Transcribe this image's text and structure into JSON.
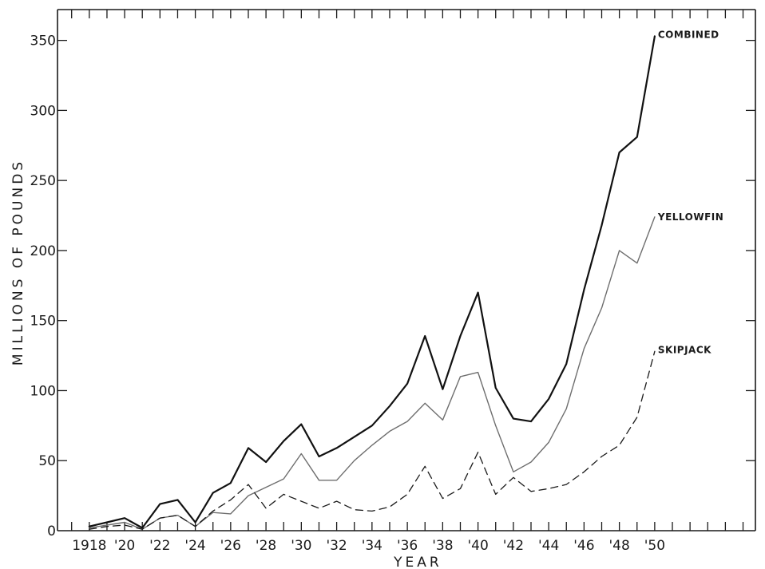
{
  "chart_data": {
    "type": "line",
    "title": "",
    "xlabel": "YEAR",
    "ylabel": "MILLIONS OF POUNDS",
    "x": [
      1918,
      1919,
      1920,
      1921,
      1922,
      1923,
      1924,
      1925,
      1926,
      1927,
      1928,
      1929,
      1930,
      1931,
      1932,
      1933,
      1934,
      1935,
      1936,
      1937,
      1938,
      1939,
      1940,
      1941,
      1942,
      1943,
      1944,
      1945,
      1946,
      1947,
      1948,
      1949,
      1950
    ],
    "x_tick_labels": [
      "1918",
      "'20",
      "'22",
      "'24",
      "'26",
      "'28",
      "'30",
      "'32",
      "'34",
      "'36",
      "'38",
      "'40",
      "'42",
      "'44",
      "'46",
      "'48",
      "'50"
    ],
    "x_tick_values": [
      1918,
      1920,
      1922,
      1924,
      1926,
      1928,
      1930,
      1932,
      1934,
      1936,
      1938,
      1940,
      1942,
      1944,
      1946,
      1948,
      1950
    ],
    "y_tick_labels": [
      "0",
      "50",
      "100",
      "150",
      "200",
      "250",
      "300",
      "350"
    ],
    "y_tick_values": [
      0,
      50,
      100,
      150,
      200,
      250,
      300,
      350
    ],
    "ylim": [
      0,
      372
    ],
    "xlim": [
      1916.2,
      1955.7
    ],
    "grid": false,
    "series": [
      {
        "name": "COMBINED",
        "style": "solid-heavy",
        "color": "#111111",
        "values": [
          3,
          6,
          9,
          2,
          19,
          22,
          6,
          27,
          34,
          59,
          49,
          64,
          76,
          53,
          59,
          67,
          75,
          89,
          105,
          139,
          101,
          139,
          170,
          102,
          80,
          78,
          94,
          119,
          172,
          218,
          270,
          281,
          353
        ]
      },
      {
        "name": "YELLOWFIN",
        "style": "solid-light",
        "color": "#6e6e6e",
        "values": [
          2,
          4,
          6,
          1,
          9,
          11,
          3,
          13,
          12,
          25,
          31,
          37,
          55,
          36,
          36,
          50,
          61,
          71,
          78,
          91,
          79,
          110,
          113,
          75,
          42,
          49,
          63,
          87,
          130,
          159,
          200,
          191,
          224
        ]
      },
      {
        "name": "SKIPJACK",
        "style": "dashed",
        "color": "#1a1a1a",
        "values": [
          1,
          3,
          4,
          1,
          9,
          11,
          3,
          14,
          22,
          33,
          16,
          26,
          21,
          16,
          21,
          15,
          14,
          17,
          26,
          46,
          23,
          30,
          56,
          26,
          38,
          28,
          30,
          33,
          42,
          53,
          61,
          81,
          128
        ]
      }
    ]
  }
}
